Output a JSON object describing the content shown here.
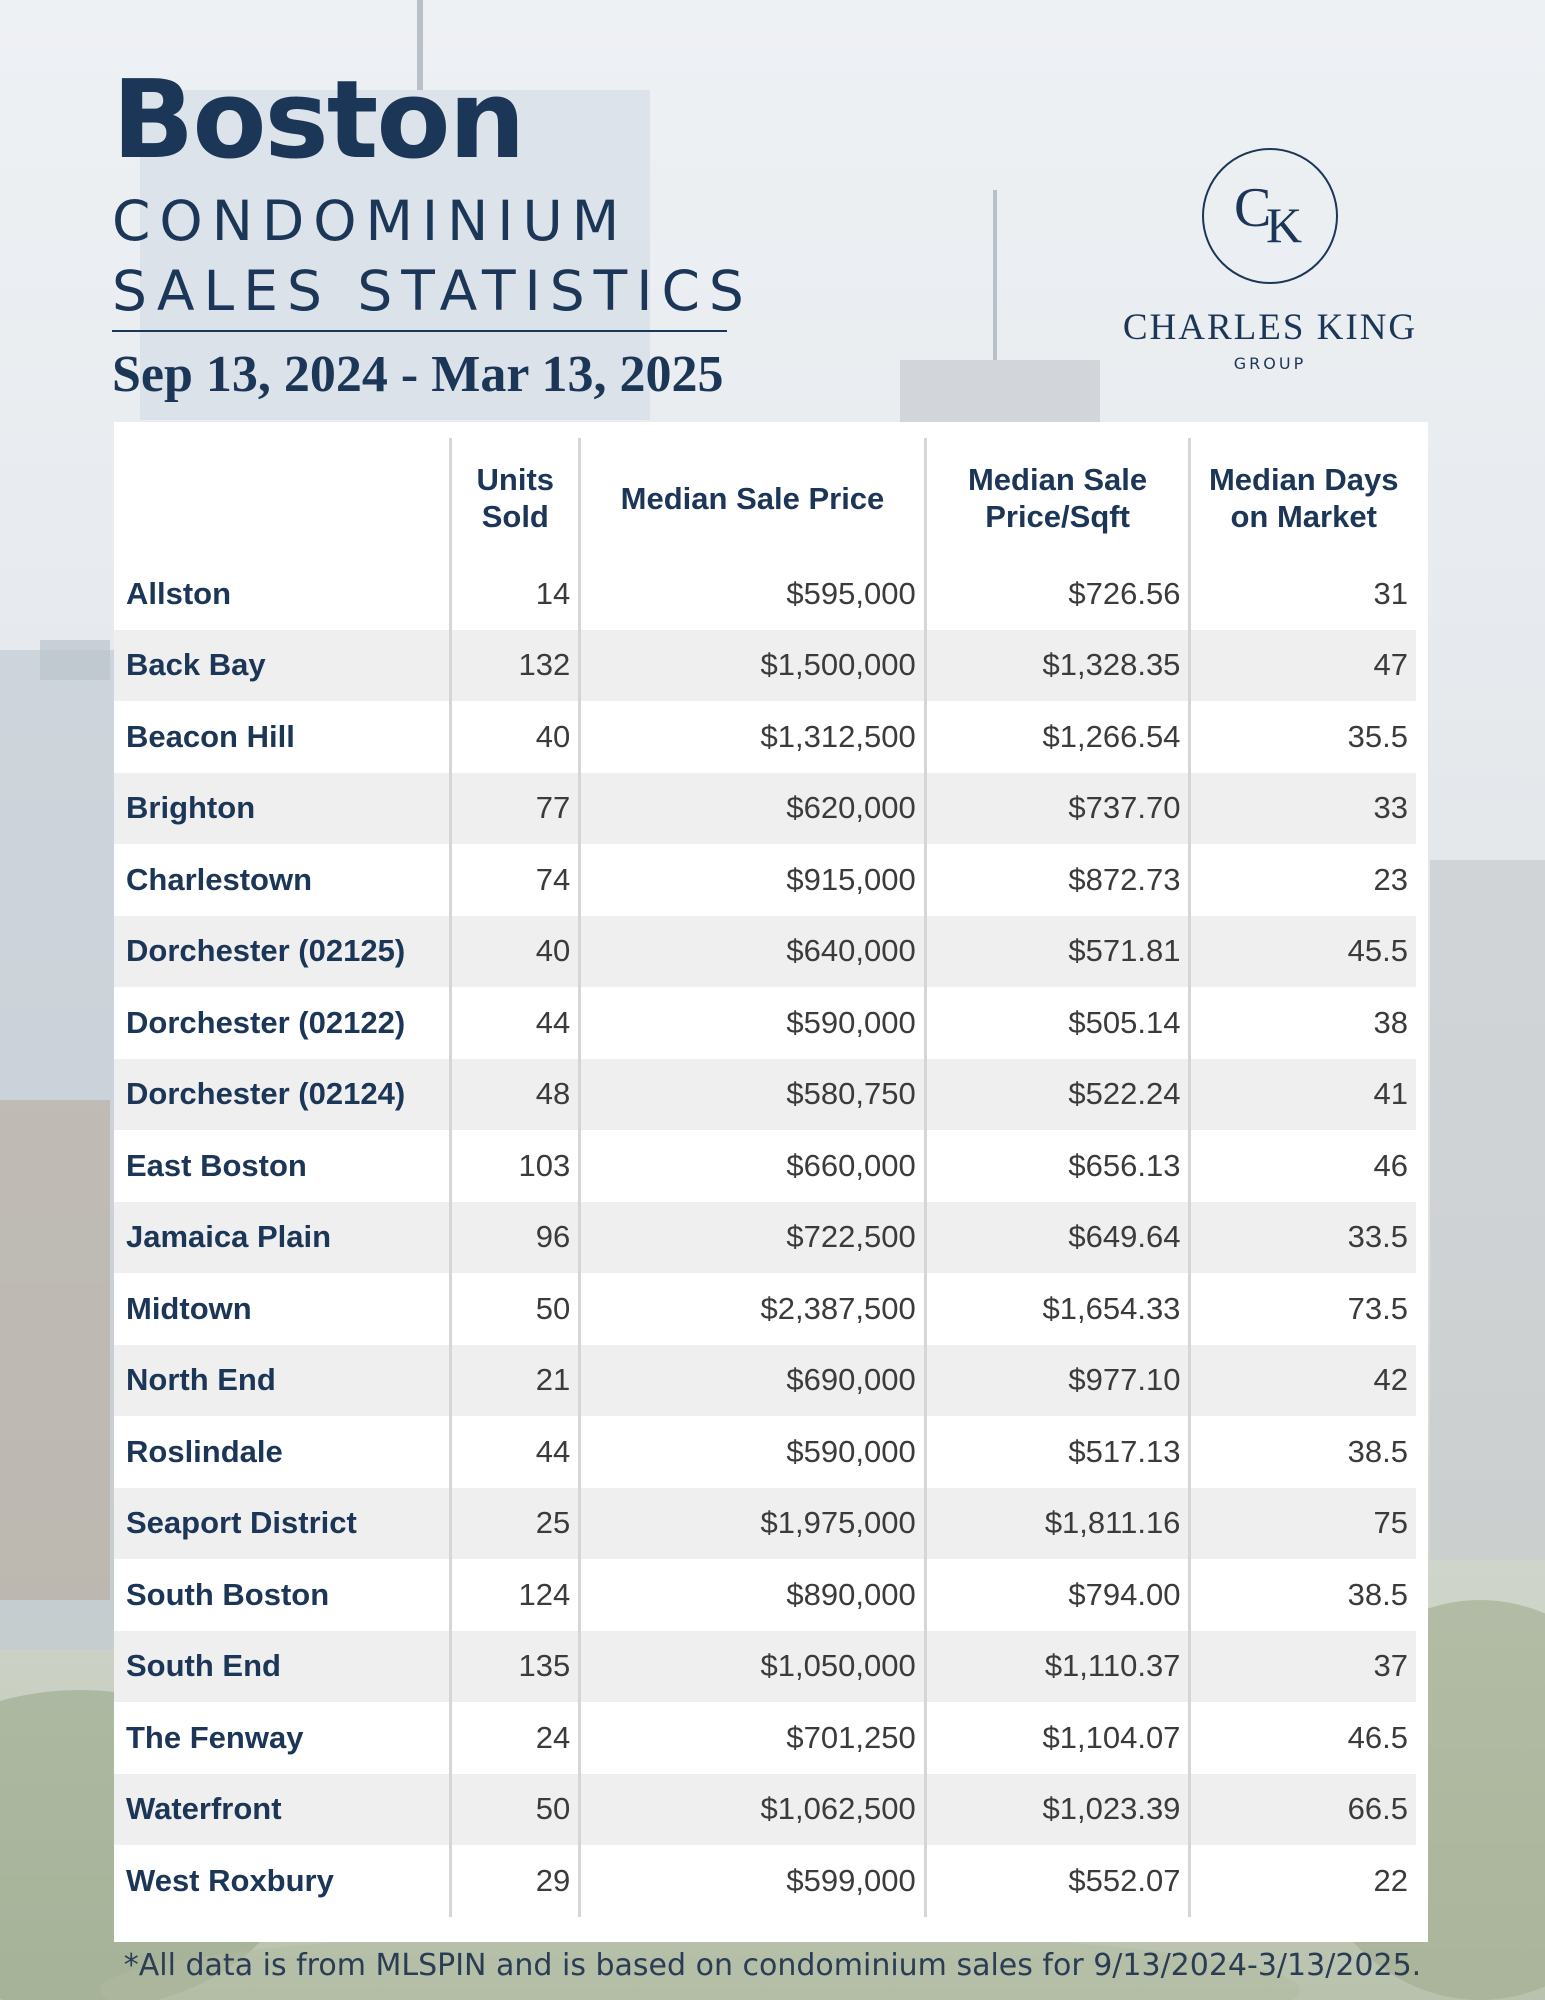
{
  "header": {
    "city": "Boston",
    "line1": "CONDOMINIUM",
    "line2": "SALES STATISTICS",
    "date_range": "Sep 13, 2024 - Mar 13, 2025"
  },
  "logo": {
    "monogram_c": "C",
    "monogram_k": "K",
    "name": "CHARLES KING",
    "group": "GROUP"
  },
  "colors": {
    "navy": "#1c3657",
    "row_shade": "#efefef"
  },
  "table": {
    "columns": [
      "",
      "Units Sold",
      "Median Sale Price",
      "Median Sale Price/Sqft",
      "Median Days on Market"
    ],
    "rows": [
      {
        "name": "Allston",
        "units": "14",
        "price": "$595,000",
        "sqft": "$726.56",
        "days": "31"
      },
      {
        "name": "Back Bay",
        "units": "132",
        "price": "$1,500,000",
        "sqft": "$1,328.35",
        "days": "47"
      },
      {
        "name": "Beacon Hill",
        "units": "40",
        "price": "$1,312,500",
        "sqft": "$1,266.54",
        "days": "35.5"
      },
      {
        "name": "Brighton",
        "units": "77",
        "price": "$620,000",
        "sqft": "$737.70",
        "days": "33"
      },
      {
        "name": "Charlestown",
        "units": "74",
        "price": "$915,000",
        "sqft": "$872.73",
        "days": "23"
      },
      {
        "name": "Dorchester (02125)",
        "units": "40",
        "price": "$640,000",
        "sqft": "$571.81",
        "days": "45.5"
      },
      {
        "name": "Dorchester (02122)",
        "units": "44",
        "price": "$590,000",
        "sqft": "$505.14",
        "days": "38"
      },
      {
        "name": "Dorchester (02124)",
        "units": "48",
        "price": "$580,750",
        "sqft": "$522.24",
        "days": "41"
      },
      {
        "name": "East Boston",
        "units": "103",
        "price": "$660,000",
        "sqft": "$656.13",
        "days": "46"
      },
      {
        "name": "Jamaica Plain",
        "units": "96",
        "price": "$722,500",
        "sqft": "$649.64",
        "days": "33.5"
      },
      {
        "name": "Midtown",
        "units": "50",
        "price": "$2,387,500",
        "sqft": "$1,654.33",
        "days": "73.5"
      },
      {
        "name": "North End",
        "units": "21",
        "price": "$690,000",
        "sqft": "$977.10",
        "days": "42"
      },
      {
        "name": "Roslindale",
        "units": "44",
        "price": "$590,000",
        "sqft": "$517.13",
        "days": "38.5"
      },
      {
        "name": "Seaport District",
        "units": "25",
        "price": "$1,975,000",
        "sqft": "$1,811.16",
        "days": "75"
      },
      {
        "name": "South Boston",
        "units": "124",
        "price": "$890,000",
        "sqft": "$794.00",
        "days": "38.5"
      },
      {
        "name": "South End",
        "units": "135",
        "price": "$1,050,000",
        "sqft": "$1,110.37",
        "days": "37"
      },
      {
        "name": "The Fenway",
        "units": "24",
        "price": "$701,250",
        "sqft": "$1,104.07",
        "days": "46.5"
      },
      {
        "name": "Waterfront",
        "units": "50",
        "price": "$1,062,500",
        "sqft": "$1,023.39",
        "days": "66.5"
      },
      {
        "name": "West Roxbury",
        "units": "29",
        "price": "$599,000",
        "sqft": "$552.07",
        "days": "22"
      }
    ]
  },
  "footnote": "*All data is from MLSPIN and is based on condominium sales for 9/13/2024-3/13/2025."
}
